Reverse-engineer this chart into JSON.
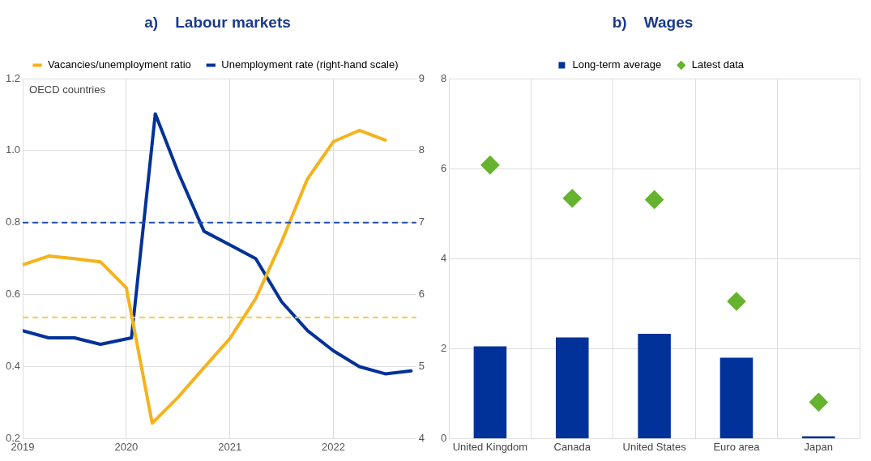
{
  "chart_data": [
    {
      "type": "line",
      "title": "a)    Labour markets",
      "legend": "top",
      "grid": true,
      "marker": "none",
      "xlim": [
        2019,
        2022.8
      ],
      "xticks": [
        2019,
        2020,
        2021,
        2022
      ],
      "ylim": [
        0.2,
        1.2
      ],
      "yticks": [
        0.2,
        0.4,
        0.6,
        0.8,
        {
          "value": 1,
          "label": "1.0"
        },
        1.2
      ],
      "y2lim": [
        4,
        9
      ],
      "y2ticks": [
        4,
        5,
        6,
        7,
        8,
        9
      ],
      "annotations": [
        "OECD countries"
      ],
      "ref_lines": [
        {
          "axis": "y",
          "value": 0.8,
          "color": "#1f4fae",
          "line_style": "dashed"
        },
        {
          "axis": "y",
          "value": 0.537,
          "color": "#f7c948",
          "line_style": "dashed"
        }
      ],
      "series": [
        {
          "name": "Vacancies/unemployment ratio",
          "color": "#f5b21b",
          "x": [
            2019,
            2019.25,
            2019.5,
            2019.75,
            2020,
            2020.25,
            2020.5,
            2020.75,
            2021,
            2021.25,
            2021.5,
            2021.75,
            2022,
            2022.25,
            2022.5
          ],
          "values": [
            0.683,
            0.707,
            0.7,
            0.691,
            0.619,
            0.243,
            0.315,
            0.397,
            0.478,
            0.589,
            0.747,
            0.922,
            1.025,
            1.056,
            1.029
          ]
        },
        {
          "name": "Unemployment rate (right-hand scale)",
          "color": "#003299",
          "axis": "y2",
          "x": [
            2019,
            2019.25,
            2019.5,
            2019.75,
            2020.05,
            2020.28,
            2020.5,
            2020.75,
            2021,
            2021.25,
            2021.5,
            2021.75,
            2022,
            2022.25,
            2022.5,
            2022.75
          ],
          "values": [
            5.5,
            5.4,
            5.4,
            5.31,
            5.4,
            8.51,
            7.7,
            6.88,
            6.69,
            6.5,
            5.9,
            5.5,
            5.22,
            5.0,
            4.9,
            4.94
          ]
        }
      ]
    },
    {
      "type": "bar",
      "title": "b)    Wages",
      "legend": "top",
      "grid": true,
      "categories": [
        "United Kingdom",
        "Canada",
        "United States",
        "Euro area",
        "Japan"
      ],
      "ylim": [
        0,
        8
      ],
      "yticks": [
        0,
        2,
        4,
        6,
        8
      ],
      "series": [
        {
          "name": "Long-term average",
          "color": "#003299",
          "values": [
            2.05,
            2.25,
            2.33,
            1.8,
            0.05
          ]
        },
        {
          "name": "Latest data",
          "type": "scatter",
          "marker": "diamond",
          "color": "#65b32e",
          "values": [
            6.08,
            5.34,
            5.31,
            3.05,
            0.81
          ]
        }
      ]
    }
  ]
}
